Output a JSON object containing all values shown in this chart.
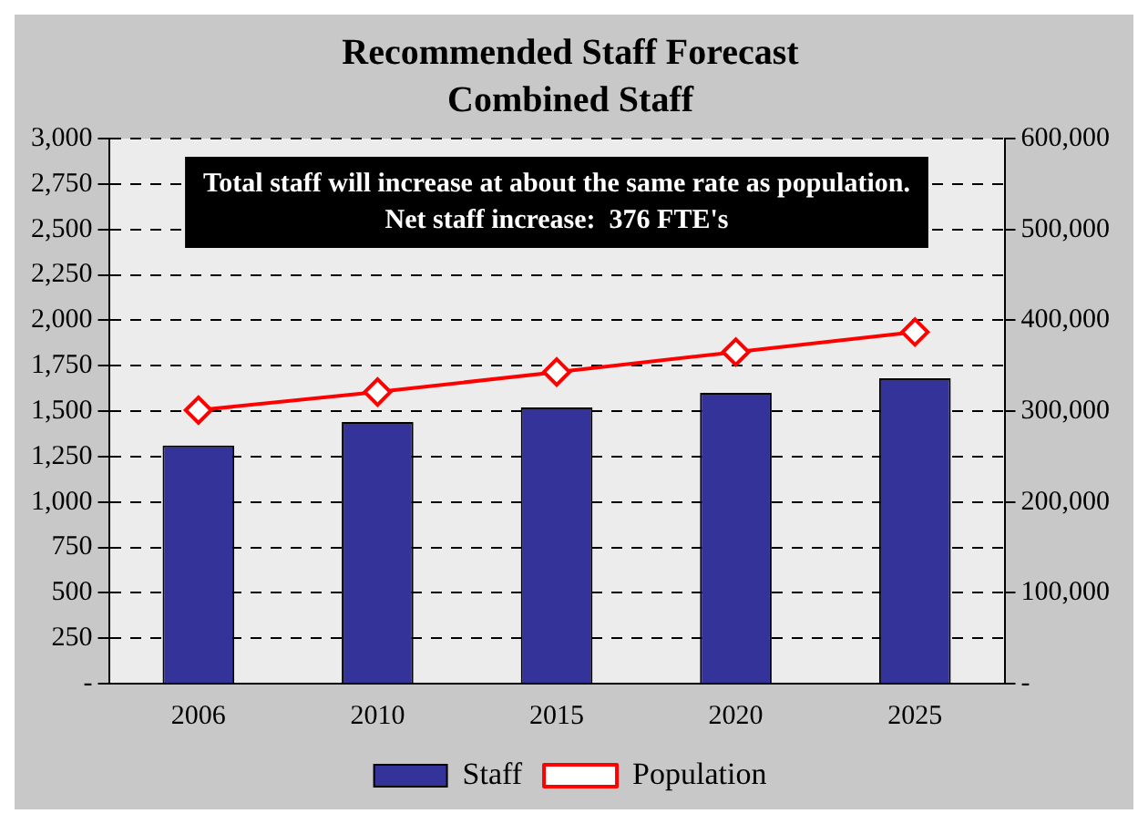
{
  "chart_data": {
    "type": "bar",
    "title": "Recommended Staff Forecast",
    "subtitle": "Combined Staff",
    "categories": [
      "2006",
      "2010",
      "2015",
      "2020",
      "2025"
    ],
    "series": [
      {
        "name": "Staff",
        "color": "#333399",
        "values": [
          1310,
          1440,
          1520,
          1600,
          1680
        ]
      },
      {
        "name": "Population",
        "type": "line",
        "axis": "y2",
        "color": "#ff0000",
        "marker": "diamond",
        "values": [
          301000,
          321000,
          343000,
          365000,
          387000
        ]
      }
    ],
    "ylim": [
      0,
      3000
    ],
    "yticks": [
      {
        "value": 0,
        "label": "-"
      },
      {
        "value": 250,
        "label": "250"
      },
      {
        "value": 500,
        "label": "500"
      },
      {
        "value": 750,
        "label": "750"
      },
      {
        "value": 1000,
        "label": "1,000"
      },
      {
        "value": 1250,
        "label": "1,250"
      },
      {
        "value": 1500,
        "label": "1,500"
      },
      {
        "value": 1750,
        "label": "1,750"
      },
      {
        "value": 2000,
        "label": "2,000"
      },
      {
        "value": 2250,
        "label": "2,250"
      },
      {
        "value": 2500,
        "label": "2,500"
      },
      {
        "value": 2750,
        "label": "2,750"
      },
      {
        "value": 3000,
        "label": "3,000"
      }
    ],
    "y2lim": [
      0,
      600000
    ],
    "y2ticks": [
      {
        "value": 0,
        "label": "-"
      },
      {
        "value": 100000,
        "label": "100,000"
      },
      {
        "value": 200000,
        "label": "200,000"
      },
      {
        "value": 300000,
        "label": "300,000"
      },
      {
        "value": 400000,
        "label": "400,000"
      },
      {
        "value": 500000,
        "label": "500,000"
      },
      {
        "value": 600000,
        "label": "600,000"
      }
    ],
    "annotations": [
      "Total staff will increase at about the same rate as population.  Net staff increase:  376 FTE's"
    ],
    "grid": "y",
    "legend": "bottom",
    "line_style": "solid"
  }
}
